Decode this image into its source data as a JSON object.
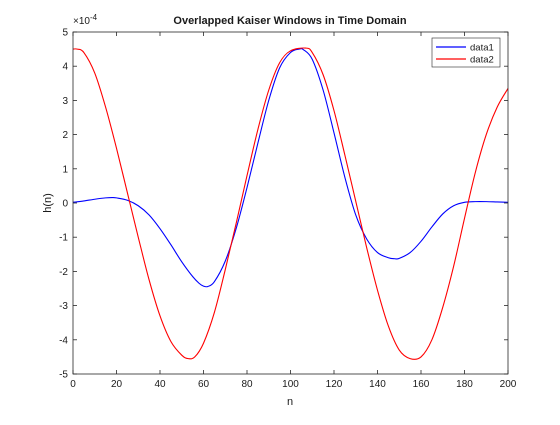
{
  "chart_data": {
    "type": "line",
    "title": "Overlapped Kaiser Windows in Time Domain",
    "xlabel": "n",
    "ylabel": "h(n)",
    "y_exponent": "×10",
    "y_exponent_power": "-4",
    "xlim": [
      0,
      200
    ],
    "ylim": [
      -5,
      5
    ],
    "xticks": [
      "0",
      "20",
      "40",
      "60",
      "80",
      "100",
      "120",
      "140",
      "160",
      "180",
      "200"
    ],
    "yticks": [
      "-5",
      "-4",
      "-3",
      "-2",
      "-1",
      "0",
      "1",
      "2",
      "3",
      "4",
      "5"
    ],
    "grid": false,
    "legend_position": "top-right",
    "series": [
      {
        "name": "data1",
        "color": "#0000ff",
        "points": [
          [
            0,
            0.02
          ],
          [
            5,
            0.06
          ],
          [
            10,
            0.11
          ],
          [
            15,
            0.15
          ],
          [
            18,
            0.16
          ],
          [
            20,
            0.15
          ],
          [
            25,
            0.08
          ],
          [
            30,
            -0.08
          ],
          [
            35,
            -0.35
          ],
          [
            40,
            -0.75
          ],
          [
            45,
            -1.22
          ],
          [
            50,
            -1.72
          ],
          [
            55,
            -2.15
          ],
          [
            58,
            -2.35
          ],
          [
            60,
            -2.43
          ],
          [
            62,
            -2.44
          ],
          [
            65,
            -2.3
          ],
          [
            70,
            -1.7
          ],
          [
            75,
            -0.75
          ],
          [
            80,
            0.45
          ],
          [
            85,
            1.75
          ],
          [
            90,
            3.0
          ],
          [
            95,
            3.95
          ],
          [
            100,
            4.4
          ],
          [
            104,
            4.5
          ],
          [
            106,
            4.48
          ],
          [
            110,
            4.2
          ],
          [
            115,
            3.3
          ],
          [
            120,
            2.05
          ],
          [
            125,
            0.75
          ],
          [
            130,
            -0.35
          ],
          [
            135,
            -1.05
          ],
          [
            140,
            -1.45
          ],
          [
            145,
            -1.6
          ],
          [
            148,
            -1.63
          ],
          [
            150,
            -1.62
          ],
          [
            155,
            -1.45
          ],
          [
            160,
            -1.12
          ],
          [
            165,
            -0.7
          ],
          [
            170,
            -0.32
          ],
          [
            175,
            -0.08
          ],
          [
            180,
            0.02
          ],
          [
            185,
            0.04
          ],
          [
            190,
            0.04
          ],
          [
            195,
            0.03
          ],
          [
            200,
            0.02
          ]
        ]
      },
      {
        "name": "data2",
        "color": "#ff0000",
        "points": [
          [
            0,
            4.5
          ],
          [
            2,
            4.5
          ],
          [
            5,
            4.4
          ],
          [
            10,
            3.8
          ],
          [
            15,
            2.8
          ],
          [
            20,
            1.6
          ],
          [
            25,
            0.3
          ],
          [
            30,
            -1.0
          ],
          [
            35,
            -2.25
          ],
          [
            40,
            -3.3
          ],
          [
            45,
            -4.05
          ],
          [
            50,
            -4.45
          ],
          [
            53,
            -4.55
          ],
          [
            56,
            -4.5
          ],
          [
            60,
            -4.1
          ],
          [
            65,
            -3.2
          ],
          [
            70,
            -1.95
          ],
          [
            75,
            -0.6
          ],
          [
            80,
            0.8
          ],
          [
            85,
            2.15
          ],
          [
            90,
            3.3
          ],
          [
            95,
            4.1
          ],
          [
            100,
            4.45
          ],
          [
            107,
            4.53
          ],
          [
            110,
            4.4
          ],
          [
            115,
            3.75
          ],
          [
            120,
            2.7
          ],
          [
            125,
            1.4
          ],
          [
            130,
            0.05
          ],
          [
            135,
            -1.3
          ],
          [
            140,
            -2.55
          ],
          [
            145,
            -3.6
          ],
          [
            150,
            -4.3
          ],
          [
            155,
            -4.55
          ],
          [
            160,
            -4.5
          ],
          [
            165,
            -4.0
          ],
          [
            170,
            -3.05
          ],
          [
            175,
            -1.85
          ],
          [
            180,
            -0.45
          ],
          [
            185,
            0.9
          ],
          [
            190,
            2.0
          ],
          [
            195,
            2.8
          ],
          [
            200,
            3.35
          ]
        ]
      }
    ]
  }
}
